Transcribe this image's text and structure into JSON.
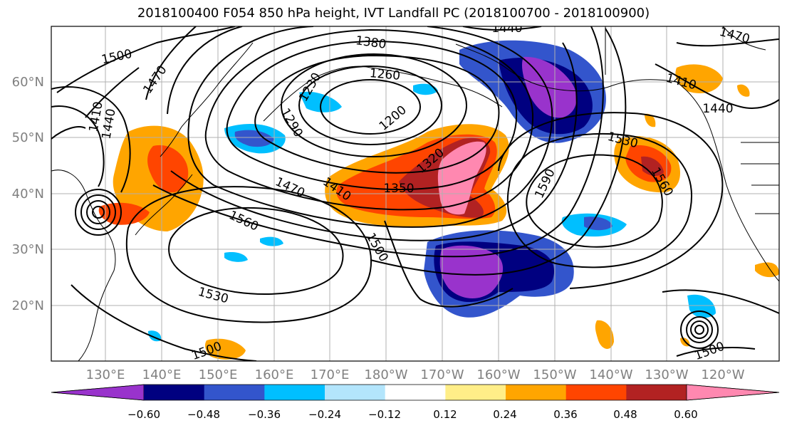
{
  "title": "2018100400 F054 850 hPa height, IVT Landfall PC (2018100700 - 2018100900)",
  "lat_labels": [
    "60°N",
    "50°N",
    "40°N",
    "30°N",
    "20°N"
  ],
  "lon_labels": [
    "130°E",
    "140°E",
    "150°E",
    "160°E",
    "170°E",
    "180°W",
    "170°W",
    "160°W",
    "150°W",
    "140°W",
    "130°W",
    "120°W"
  ],
  "contour_labels": [
    "1440",
    "1470",
    "1380",
    "1500",
    "1470",
    "1260",
    "1230",
    "1410",
    "1410",
    "1440",
    "1200",
    "1290",
    "1440",
    "1530",
    "1320",
    "1560",
    "1350",
    "1470",
    "1410",
    "1590",
    "1560",
    "1500",
    "1530",
    "1500",
    "1500"
  ],
  "colorbar": {
    "colors": [
      "#9933cc",
      "#000080",
      "#3355cc",
      "#00bfff",
      "#b3e5fc",
      "#ffffff",
      "#ffee88",
      "#ffa500",
      "#ff4500",
      "#b22222",
      "#ff88b0"
    ],
    "ticks": [
      "−0.60",
      "−0.48",
      "−0.36",
      "−0.24",
      "−0.12",
      "0.12",
      "0.24",
      "0.36",
      "0.48",
      "0.60"
    ]
  }
}
